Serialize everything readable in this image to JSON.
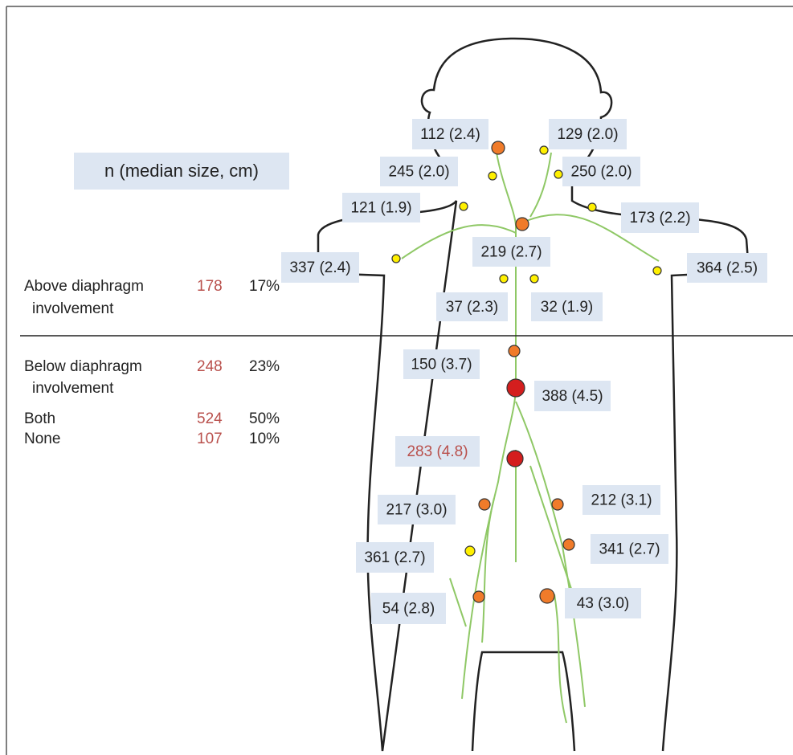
{
  "legend_title": "n (median size, cm)",
  "summary": {
    "above": [
      {
        "label": [
          "Above diaphragm",
          "involvement"
        ],
        "n": 178,
        "pct": "17%"
      }
    ],
    "below": [
      {
        "label": [
          "Below diaphragm",
          "involvement"
        ],
        "n": 248,
        "pct": "23%"
      },
      {
        "label": [
          "Both"
        ],
        "n": 524,
        "pct": "50%"
      },
      {
        "label": [
          "None"
        ],
        "n": 107,
        "pct": "10%"
      }
    ]
  },
  "nodes": [
    {
      "label": "112 (2.4)"
    },
    {
      "label": "129 (2.0)"
    },
    {
      "label": "245 (2.0)"
    },
    {
      "label": "250 (2.0)"
    },
    {
      "label": "121 (1.9)"
    },
    {
      "label": "173 (2.2)"
    },
    {
      "label": "219 (2.7)"
    },
    {
      "label": "337 (2.4)"
    },
    {
      "label": "364 (2.5)"
    },
    {
      "label": "37 (2.3)"
    },
    {
      "label": "32 (1.9)"
    },
    {
      "label": "150 (3.7)"
    },
    {
      "label": "388 (4.5)"
    },
    {
      "label": "283 (4.8)"
    },
    {
      "label": "217 (3.0)"
    },
    {
      "label": "212 (3.1)"
    },
    {
      "label": "361 (2.7)"
    },
    {
      "label": "341 (2.7)"
    },
    {
      "label": "54 (2.8)"
    },
    {
      "label": "43 (3.0)"
    }
  ]
}
